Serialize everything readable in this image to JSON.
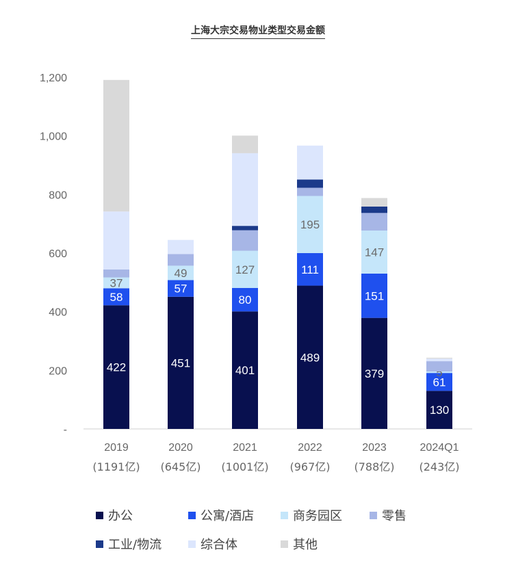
{
  "title": "上海大宗交易物业类型交易金额",
  "chart_data": {
    "type": "bar",
    "stacked": true,
    "title": "上海大宗交易物业类型交易金额",
    "categories": [
      "2019",
      "2020",
      "2021",
      "2022",
      "2023",
      "2024Q1"
    ],
    "category_sublabels": [
      "(1191亿)",
      "(645亿)",
      "(1001亿)",
      "(967亿)",
      "(788亿)",
      "(243亿)"
    ],
    "y_ticks": [
      "-",
      "200",
      "400",
      "600",
      "800",
      "1,000",
      "1,200"
    ],
    "ylim": [
      0,
      1200
    ],
    "grid": false,
    "legend_position": "bottom",
    "series": [
      {
        "name": "办公",
        "color": "#08104f",
        "values": [
          422,
          451,
          401,
          489,
          379,
          130
        ],
        "labels": [
          "422",
          "451",
          "401",
          "489",
          "379",
          "130"
        ]
      },
      {
        "name": "公寓/酒店",
        "color": "#1f50ee",
        "values": [
          58,
          57,
          80,
          111,
          151,
          61
        ],
        "labels": [
          "58",
          "57",
          "80",
          "111",
          "151",
          "61"
        ]
      },
      {
        "name": "商务园区",
        "color": "#c5e6fa",
        "values": [
          37,
          49,
          127,
          195,
          147,
          5
        ],
        "labels": [
          "37",
          "49",
          "127",
          "195",
          "147",
          "5"
        ]
      },
      {
        "name": "零售",
        "color": "#a7b6e6",
        "values": [
          27,
          40,
          70,
          28,
          60,
          35
        ],
        "labels": [
          "",
          "",
          "",
          "",
          "",
          ""
        ]
      },
      {
        "name": "工业/物流",
        "color": "#1b3a8a",
        "values": [
          0,
          0,
          15,
          28,
          22,
          0
        ],
        "labels": [
          "",
          "",
          "",
          "",
          "",
          ""
        ]
      },
      {
        "name": "综合体",
        "color": "#dce6fd",
        "values": [
          198,
          48,
          248,
          116,
          0,
          9
        ],
        "labels": [
          "",
          "",
          "",
          "",
          "",
          ""
        ]
      },
      {
        "name": "其他",
        "color": "#d9d9d9",
        "values": [
          449,
          0,
          60,
          0,
          29,
          3
        ],
        "labels": [
          "",
          "",
          "",
          "",
          "",
          ""
        ]
      }
    ]
  }
}
